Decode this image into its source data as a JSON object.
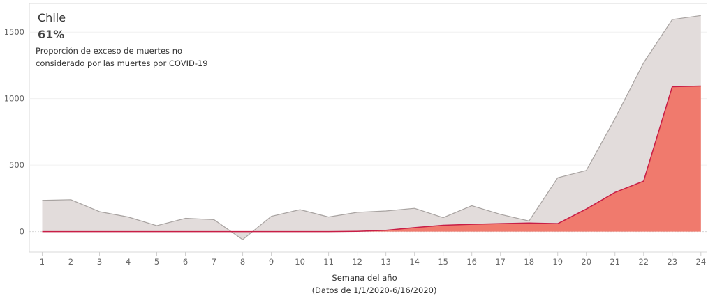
{
  "chart_data": {
    "type": "area",
    "title": "Chile",
    "highlight_value": "61%",
    "caption_lines": [
      "Proporción de exceso de muertes no",
      "considerado por las muertes por COVID-19"
    ],
    "xlabel": "Semana del año",
    "xsubtitle": "(Datos de  1/1/2020-6/16/2020)",
    "x": [
      1,
      2,
      3,
      4,
      5,
      6,
      7,
      8,
      9,
      10,
      11,
      12,
      13,
      14,
      15,
      16,
      17,
      18,
      19,
      20,
      21,
      22,
      23,
      24
    ],
    "xlim": [
      0.55,
      24.2
    ],
    "ylim": [
      -70,
      1700
    ],
    "yticks": [
      0,
      500,
      1000,
      1500
    ],
    "grid": true,
    "series": [
      {
        "values": [
          235,
          240,
          150,
          110,
          45,
          100,
          90,
          -60,
          115,
          165,
          110,
          145,
          155,
          175,
          105,
          195,
          130,
          80,
          405,
          460,
          850,
          1270,
          1595,
          1625
        ],
        "color": "#e2dcdb",
        "line_color": "#a8a3a1"
      },
      {
        "values": [
          0,
          0,
          0,
          0,
          0,
          0,
          0,
          0,
          0,
          0,
          0,
          2,
          10,
          30,
          48,
          55,
          60,
          65,
          60,
          170,
          295,
          380,
          1090,
          1095
        ],
        "color": "#f07a6d",
        "line_color": "#c81e46"
      }
    ]
  }
}
